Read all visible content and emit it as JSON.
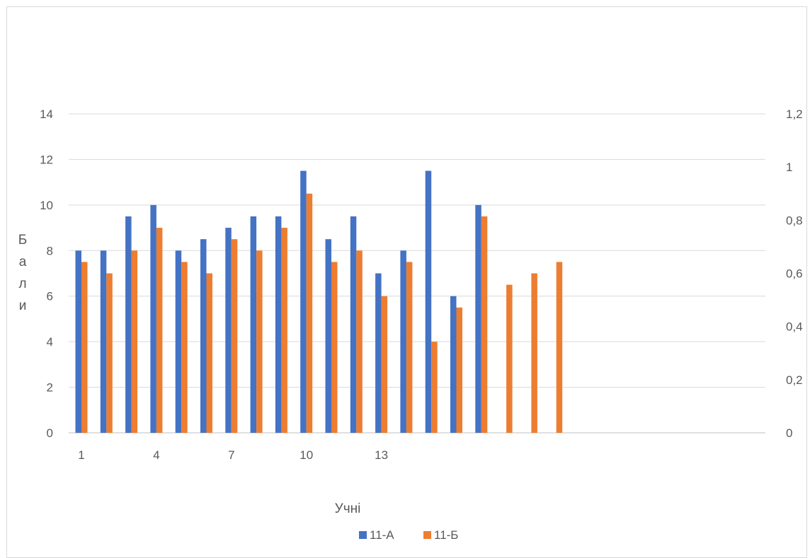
{
  "chart_data": {
    "type": "bar",
    "xlabel": "Учні",
    "ylabel_letters": [
      "Б",
      "а",
      "л",
      "и"
    ],
    "x_tick_labels": [
      "1",
      "4",
      "7",
      "10",
      "13"
    ],
    "categories": [
      1,
      2,
      3,
      4,
      5,
      6,
      7,
      8,
      9,
      10,
      11,
      12,
      13,
      14,
      15,
      16,
      17,
      18,
      19,
      20
    ],
    "series": [
      {
        "name": "11-А",
        "color": "#4472C4",
        "values": [
          8,
          8,
          9.5,
          10,
          8,
          8.5,
          9,
          9.5,
          9.5,
          11.5,
          8.5,
          9.5,
          7,
          8,
          11.5,
          6,
          10,
          null,
          null,
          null
        ]
      },
      {
        "name": "11-Б",
        "color": "#ED7D31",
        "values": [
          7.5,
          7,
          8,
          9,
          7.5,
          7,
          8.5,
          8,
          9,
          10.5,
          7.5,
          8,
          6,
          7.5,
          4,
          5.5,
          9.5,
          6.5,
          7,
          7.5
        ]
      }
    ],
    "ylim": [
      0,
      14
    ],
    "y_ticks": [
      "0",
      "2",
      "4",
      "6",
      "8",
      "10",
      "12",
      "14"
    ],
    "y2_ticks": [
      "0",
      "0,2",
      "0,4",
      "0,6",
      "0,8",
      "1",
      "1,2"
    ],
    "grid": true,
    "legend_position": "bottom"
  }
}
